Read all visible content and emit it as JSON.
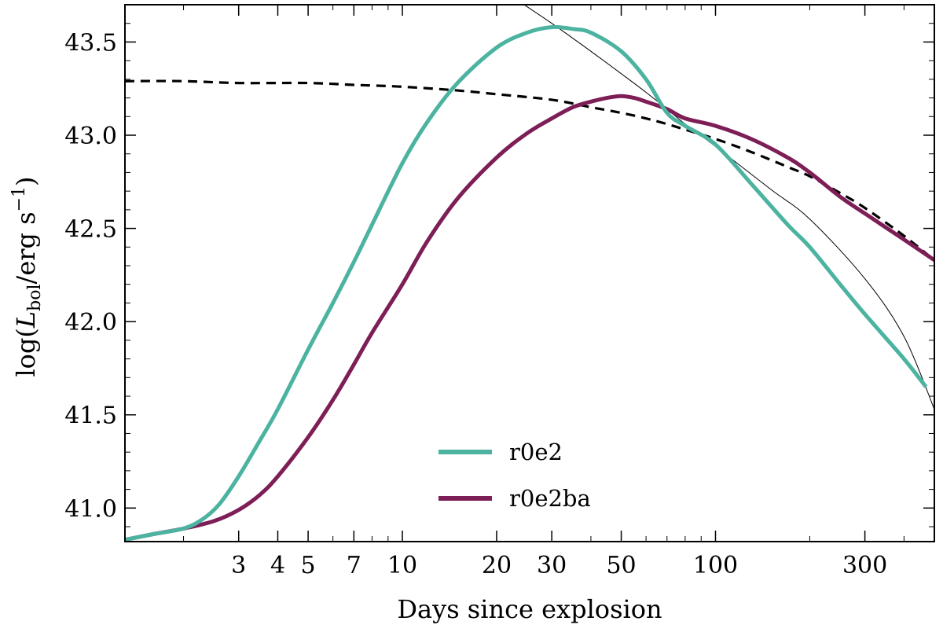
{
  "chart_data": {
    "type": "line",
    "xlabel": "Days since explosion",
    "ylabel": "log(L_bol / erg s^-1)",
    "xscale": "log",
    "xlim": [
      1.3,
      500
    ],
    "ylim": [
      40.82,
      43.7
    ],
    "xticks": [
      3,
      4,
      5,
      7,
      10,
      20,
      30,
      50,
      100,
      300
    ],
    "xtick_labels": [
      "3",
      "4",
      "5",
      "7",
      "10",
      "20",
      "30",
      "50",
      "100",
      "300"
    ],
    "yticks": [
      41.0,
      41.5,
      42.0,
      42.5,
      43.0,
      43.5
    ],
    "ytick_labels": [
      "41.0",
      "41.5",
      "42.0",
      "42.5",
      "43.0",
      "43.5"
    ],
    "grid": false,
    "legend_position": "lower-center",
    "series": [
      {
        "name": "r0e2",
        "color": "#4bb3a0",
        "style": "solid-thick",
        "x": [
          1.3,
          1.6,
          2.0,
          2.3,
          2.6,
          3.0,
          3.5,
          4.0,
          5.0,
          6.0,
          7.0,
          8.0,
          10.0,
          12.0,
          15.0,
          20.0,
          25.0,
          30.0,
          35.0,
          40.0,
          50.0,
          60.0,
          70.0,
          80.0,
          100.0,
          130.0,
          170.0,
          200.0,
          250.0,
          300.0,
          400.0,
          470.0
        ],
        "y": [
          40.83,
          40.86,
          40.89,
          40.94,
          41.02,
          41.17,
          41.36,
          41.53,
          41.85,
          42.1,
          42.32,
          42.52,
          42.85,
          43.07,
          43.28,
          43.47,
          43.55,
          43.58,
          43.57,
          43.55,
          43.45,
          43.3,
          43.12,
          43.05,
          42.95,
          42.74,
          42.52,
          42.4,
          42.2,
          42.04,
          41.8,
          41.65
        ]
      },
      {
        "name": "r0e2ba",
        "color": "#7d1e57",
        "style": "solid-thick",
        "x": [
          1.3,
          1.6,
          2.0,
          2.5,
          3.0,
          3.5,
          4.0,
          5.0,
          6.0,
          7.0,
          8.0,
          10.0,
          12.0,
          15.0,
          20.0,
          25.0,
          30.0,
          35.0,
          40.0,
          45.0,
          50.0,
          55.0,
          60.0,
          70.0,
          80.0,
          100.0,
          130.0,
          170.0,
          200.0,
          250.0,
          300.0,
          400.0,
          500.0
        ],
        "y": [
          40.83,
          40.86,
          40.89,
          40.93,
          40.99,
          41.07,
          41.17,
          41.38,
          41.58,
          41.77,
          41.94,
          42.2,
          42.43,
          42.66,
          42.88,
          43.01,
          43.09,
          43.15,
          43.18,
          43.2,
          43.21,
          43.2,
          43.18,
          43.14,
          43.09,
          43.05,
          42.98,
          42.88,
          42.8,
          42.67,
          42.58,
          42.44,
          42.33
        ]
      },
      {
        "name": "",
        "color": "#000000",
        "style": "dashed",
        "x": [
          1.3,
          2,
          3,
          5,
          7,
          10,
          15,
          20,
          30,
          40,
          50,
          60,
          70,
          80,
          100,
          130,
          170,
          200,
          250,
          300,
          400,
          500
        ],
        "y": [
          43.29,
          43.29,
          43.28,
          43.28,
          43.27,
          43.26,
          43.24,
          43.22,
          43.19,
          43.15,
          43.12,
          43.09,
          43.06,
          43.03,
          42.98,
          42.91,
          42.83,
          42.78,
          42.69,
          42.61,
          42.46,
          42.33
        ]
      },
      {
        "name": "",
        "color": "#000000",
        "style": "thin",
        "x": [
          23,
          30,
          40,
          50,
          60,
          70,
          80,
          100,
          150,
          200,
          300,
          400,
          500
        ],
        "y": [
          43.73,
          43.6,
          43.45,
          43.33,
          43.23,
          43.14,
          43.06,
          42.94,
          42.71,
          42.55,
          42.23,
          41.92,
          41.53
        ]
      }
    ]
  }
}
